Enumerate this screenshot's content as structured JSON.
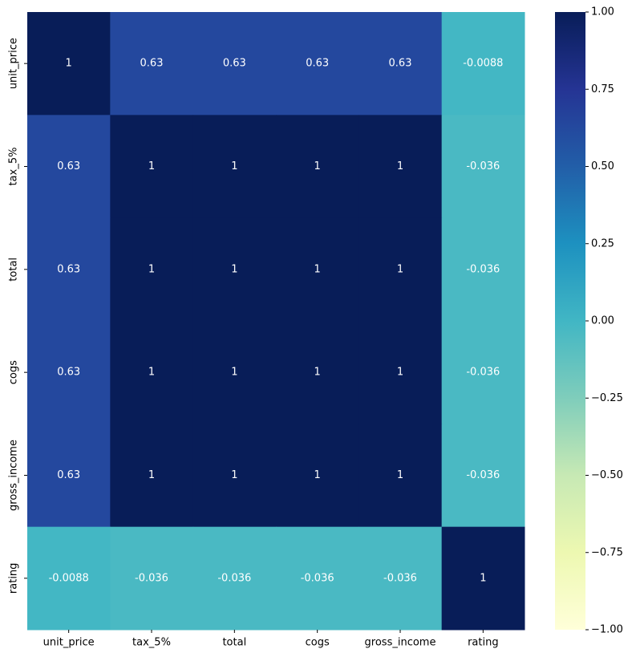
{
  "chart_data": {
    "type": "heatmap",
    "title": "",
    "xlabel": "",
    "ylabel": "",
    "x_categories": [
      "unit_price",
      "tax_5%",
      "total",
      "cogs",
      "gross_income",
      "rating"
    ],
    "y_categories": [
      "unit_price",
      "tax_5%",
      "total",
      "cogs",
      "gross_income",
      "rating"
    ],
    "values": [
      [
        1,
        0.63,
        0.63,
        0.63,
        0.63,
        -0.0088
      ],
      [
        0.63,
        1,
        1,
        1,
        1,
        -0.036
      ],
      [
        0.63,
        1,
        1,
        1,
        1,
        -0.036
      ],
      [
        0.63,
        1,
        1,
        1,
        1,
        -0.036
      ],
      [
        0.63,
        1,
        1,
        1,
        1,
        -0.036
      ],
      [
        -0.0088,
        -0.036,
        -0.036,
        -0.036,
        -0.036,
        1
      ]
    ],
    "annotations": [
      [
        "1",
        "0.63",
        "0.63",
        "0.63",
        "0.63",
        "-0.0088"
      ],
      [
        "0.63",
        "1",
        "1",
        "1",
        "1",
        "-0.036"
      ],
      [
        "0.63",
        "1",
        "1",
        "1",
        "1",
        "-0.036"
      ],
      [
        "0.63",
        "1",
        "1",
        "1",
        "1",
        "-0.036"
      ],
      [
        "0.63",
        "1",
        "1",
        "1",
        "1",
        "-0.036"
      ],
      [
        "-0.0088",
        "-0.036",
        "-0.036",
        "-0.036",
        "-0.036",
        "1"
      ]
    ],
    "colormap": "YlGnBu",
    "vmin": -1,
    "vmax": 1,
    "colorbar": {
      "ticks": [
        1.0,
        0.75,
        0.5,
        0.25,
        0.0,
        -0.25,
        -0.5,
        -0.75,
        -1.0
      ],
      "tick_labels": [
        "1.00",
        "0.75",
        "0.50",
        "0.25",
        "0.00",
        "−0.25",
        "−0.50",
        "−0.75",
        "−1.00"
      ]
    }
  }
}
